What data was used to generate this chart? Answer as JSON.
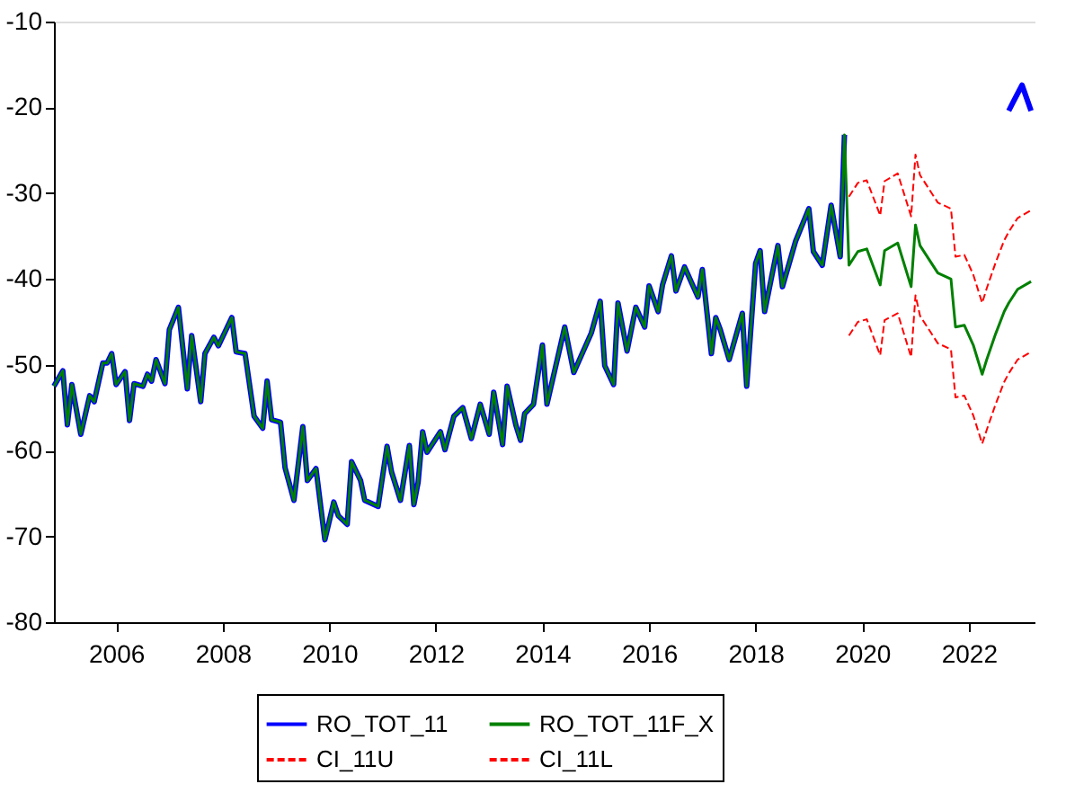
{
  "chart_data": {
    "type": "line",
    "xlim": [
      "2005-05",
      "2023-10"
    ],
    "ylim": [
      -80,
      -10
    ],
    "yticks": [
      -80,
      -70,
      -60,
      -50,
      -40,
      -30,
      -20,
      -10
    ],
    "xticks": [
      {
        "value": "2006-07",
        "label": "2006"
      },
      {
        "value": "2008-07",
        "label": "2008"
      },
      {
        "value": "2010-07",
        "label": "2010"
      },
      {
        "value": "2012-07",
        "label": "2012"
      },
      {
        "value": "2014-07",
        "label": "2014"
      },
      {
        "value": "2016-07",
        "label": "2016"
      },
      {
        "value": "2018-07",
        "label": "2018"
      },
      {
        "value": "2020-07",
        "label": "2020"
      },
      {
        "value": "2022-07",
        "label": "2022"
      }
    ],
    "grid": false,
    "legend": "bottom",
    "series": [
      {
        "name": "RO_TOT_11",
        "color": "#0000ff",
        "line_style": "solid",
        "x": [
          "2005-05",
          "2005-07",
          "2005-08",
          "2005-09",
          "2005-11",
          "2006-01",
          "2006-02",
          "2006-04",
          "2006-05",
          "2006-06",
          "2006-07",
          "2006-09",
          "2006-10",
          "2006-11",
          "2007-01",
          "2007-02",
          "2007-03",
          "2007-04",
          "2007-06",
          "2007-07",
          "2007-09",
          "2007-11",
          "2007-12",
          "2008-02",
          "2008-03",
          "2008-05",
          "2008-06",
          "2008-09",
          "2008-10",
          "2008-12",
          "2009-02",
          "2009-04",
          "2009-05",
          "2009-06",
          "2009-08",
          "2009-09",
          "2009-11",
          "2010-01",
          "2010-02",
          "2010-04",
          "2010-06",
          "2010-08",
          "2010-09",
          "2010-11",
          "2010-12",
          "2011-02",
          "2011-03",
          "2011-06",
          "2011-08",
          "2011-09",
          "2011-11",
          "2012-01",
          "2012-02",
          "2012-03",
          "2012-04",
          "2012-05",
          "2012-08",
          "2012-09",
          "2012-11",
          "2013-01",
          "2013-03",
          "2013-05",
          "2013-07",
          "2013-08",
          "2013-10",
          "2013-11",
          "2014-01",
          "2014-02",
          "2014-03",
          "2014-05",
          "2014-07",
          "2014-08",
          "2014-12",
          "2015-02",
          "2015-06",
          "2015-08",
          "2015-09",
          "2015-11",
          "2015-12",
          "2016-02",
          "2016-04",
          "2016-06",
          "2016-07",
          "2016-09",
          "2016-10",
          "2016-12",
          "2017-01",
          "2017-03",
          "2017-06",
          "2017-07",
          "2017-09",
          "2017-10",
          "2017-11",
          "2018-01",
          "2018-04",
          "2018-05",
          "2018-07",
          "2018-08",
          "2018-09",
          "2018-12",
          "2019-01",
          "2019-04",
          "2019-07",
          "2019-08",
          "2019-10",
          "2019-12",
          "2020-02",
          "2020-03",
          "2021-09",
          "2023-04",
          "2023-05",
          "2023-07",
          "2023-09"
        ],
        "values": [
          -52.5,
          -50.7,
          -57.0,
          -52.3,
          -58.1,
          -53.6,
          -54.3,
          -49.8,
          -49.8,
          -48.7,
          -52.3,
          -50.8,
          -56.5,
          -52.2,
          -52.5,
          -51.1,
          -51.9,
          -49.4,
          -52.2,
          -45.9,
          -43.3,
          -52.8,
          -46.6,
          -54.3,
          -48.7,
          -46.8,
          -47.8,
          -44.5,
          -48.5,
          -48.7,
          -56.0,
          -57.4,
          -51.9,
          -56.4,
          -56.7,
          -62.0,
          -65.8,
          -57.2,
          -63.5,
          -62.1,
          -70.4,
          -66.0,
          -67.6,
          -68.6,
          -61.3,
          -63.5,
          -65.8,
          -66.5,
          -59.5,
          -62.5,
          -65.8,
          -59.4,
          -66.3,
          -63.7,
          -57.8,
          -60.2,
          -57.8,
          -59.9,
          -56.0,
          -55.0,
          -58.6,
          -54.6,
          -58.1,
          -53.2,
          -59.3,
          -52.5,
          -57.1,
          -58.8,
          -55.7,
          -54.6,
          -47.7,
          -54.6,
          -45.6,
          -50.9,
          -46.3,
          -42.6,
          -50.1,
          -52.3,
          -42.8,
          -48.4,
          -43.3,
          -45.6,
          -40.8,
          -43.8,
          -40.7,
          -37.3,
          -41.4,
          -38.6,
          -42.1,
          -38.9,
          -48.7,
          -44.5,
          -45.9,
          -49.4,
          -44.0,
          -52.5,
          -38.2,
          -36.7,
          -43.8,
          -36.1,
          -40.9,
          -35.6,
          -31.8,
          -36.8,
          -38.4,
          -31.4,
          -37.4,
          -23.2,
          null,
          -20.4,
          -19.4,
          -17.4,
          -20.4
        ]
      },
      {
        "name": "RO_TOT_11F_X",
        "color": "#008000",
        "line_style": "solid",
        "x": [
          "2005-05",
          "2005-07",
          "2005-08",
          "2005-09",
          "2005-11",
          "2006-01",
          "2006-02",
          "2006-04",
          "2006-05",
          "2006-06",
          "2006-07",
          "2006-09",
          "2006-10",
          "2006-11",
          "2007-01",
          "2007-02",
          "2007-03",
          "2007-04",
          "2007-06",
          "2007-07",
          "2007-09",
          "2007-11",
          "2007-12",
          "2008-02",
          "2008-03",
          "2008-05",
          "2008-06",
          "2008-09",
          "2008-10",
          "2008-12",
          "2009-02",
          "2009-04",
          "2009-05",
          "2009-06",
          "2009-08",
          "2009-09",
          "2009-11",
          "2010-01",
          "2010-02",
          "2010-04",
          "2010-06",
          "2010-08",
          "2010-09",
          "2010-11",
          "2010-12",
          "2011-02",
          "2011-03",
          "2011-06",
          "2011-08",
          "2011-09",
          "2011-11",
          "2012-01",
          "2012-02",
          "2012-03",
          "2012-04",
          "2012-05",
          "2012-08",
          "2012-09",
          "2012-11",
          "2013-01",
          "2013-03",
          "2013-05",
          "2013-07",
          "2013-08",
          "2013-10",
          "2013-11",
          "2014-01",
          "2014-02",
          "2014-03",
          "2014-05",
          "2014-07",
          "2014-08",
          "2014-12",
          "2015-02",
          "2015-06",
          "2015-08",
          "2015-09",
          "2015-11",
          "2015-12",
          "2016-02",
          "2016-04",
          "2016-06",
          "2016-07",
          "2016-09",
          "2016-10",
          "2016-12",
          "2017-01",
          "2017-03",
          "2017-06",
          "2017-07",
          "2017-09",
          "2017-10",
          "2017-11",
          "2018-01",
          "2018-04",
          "2018-05",
          "2018-07",
          "2018-08",
          "2018-09",
          "2018-12",
          "2019-01",
          "2019-04",
          "2019-07",
          "2019-08",
          "2019-10",
          "2019-12",
          "2020-02",
          "2020-03",
          "2020-04",
          "2020-06",
          "2020-08",
          "2020-11",
          "2020-12",
          "2021-03",
          "2021-06",
          "2021-07",
          "2021-08",
          "2021-12",
          "2022-03",
          "2022-04",
          "2022-06",
          "2022-08",
          "2022-10",
          "2022-11",
          "2023-01",
          "2023-03",
          "2023-04",
          "2023-06",
          "2023-09"
        ],
        "values": [
          -52.5,
          -50.7,
          -57.0,
          -52.3,
          -58.1,
          -53.6,
          -54.3,
          -49.8,
          -49.8,
          -48.7,
          -52.3,
          -50.8,
          -56.5,
          -52.2,
          -52.5,
          -51.1,
          -51.9,
          -49.4,
          -52.2,
          -45.9,
          -43.3,
          -52.8,
          -46.6,
          -54.3,
          -48.7,
          -46.8,
          -47.8,
          -44.5,
          -48.5,
          -48.7,
          -56.0,
          -57.4,
          -51.9,
          -56.4,
          -56.7,
          -62.0,
          -65.8,
          -57.2,
          -63.5,
          -62.1,
          -70.4,
          -66.0,
          -67.6,
          -68.6,
          -61.3,
          -63.5,
          -65.8,
          -66.5,
          -59.5,
          -62.5,
          -65.8,
          -59.4,
          -66.3,
          -63.7,
          -57.8,
          -60.2,
          -57.8,
          -59.9,
          -56.0,
          -55.0,
          -58.6,
          -54.6,
          -58.1,
          -53.2,
          -59.3,
          -52.5,
          -57.1,
          -58.8,
          -55.7,
          -54.6,
          -47.7,
          -54.6,
          -45.6,
          -50.9,
          -46.3,
          -42.6,
          -50.1,
          -52.3,
          -42.8,
          -48.4,
          -43.3,
          -45.6,
          -40.8,
          -43.8,
          -40.7,
          -37.3,
          -41.4,
          -38.6,
          -42.1,
          -38.9,
          -48.7,
          -44.5,
          -45.9,
          -49.4,
          -44.0,
          -52.5,
          -38.2,
          -36.7,
          -43.8,
          -36.1,
          -40.9,
          -35.6,
          -31.8,
          -36.8,
          -38.4,
          -31.4,
          -37.4,
          -23.2,
          -38.4,
          -36.8,
          -36.5,
          -40.7,
          -36.7,
          -35.8,
          -40.9,
          -33.7,
          -36.1,
          -39.3,
          -40.0,
          -45.6,
          -45.4,
          -47.7,
          -51.1,
          -49.4,
          -46.4,
          -43.8,
          -42.8,
          -41.2,
          -40.3
        ]
      },
      {
        "name": "CI_11U",
        "color": "#ff0000",
        "line_style": "dashed",
        "x": [
          "2020-04",
          "2020-06",
          "2020-08",
          "2020-11",
          "2020-12",
          "2021-03",
          "2021-06",
          "2021-07",
          "2021-08",
          "2021-12",
          "2022-03",
          "2022-04",
          "2022-06",
          "2022-08",
          "2022-10",
          "2022-11",
          "2023-01",
          "2023-03",
          "2023-04",
          "2023-06",
          "2023-09"
        ],
        "values": [
          -30.4,
          -28.8,
          -28.5,
          -32.6,
          -28.6,
          -27.7,
          -32.7,
          -25.5,
          -27.9,
          -31.1,
          -31.8,
          -37.4,
          -37.2,
          -39.5,
          -42.8,
          -41.1,
          -38.1,
          -35.5,
          -34.5,
          -32.9,
          -32.0
        ]
      },
      {
        "name": "CI_11L",
        "color": "#ff0000",
        "line_style": "dashed",
        "x": [
          "2020-04",
          "2020-06",
          "2020-08",
          "2020-11",
          "2020-12",
          "2021-03",
          "2021-06",
          "2021-07",
          "2021-08",
          "2021-12",
          "2022-03",
          "2022-04",
          "2022-06",
          "2022-08",
          "2022-10",
          "2022-11",
          "2023-01",
          "2023-03",
          "2023-04",
          "2023-06",
          "2023-09"
        ],
        "values": [
          -46.6,
          -45.0,
          -44.7,
          -48.9,
          -44.8,
          -44.0,
          -49.1,
          -41.9,
          -44.3,
          -47.5,
          -48.2,
          -53.8,
          -53.6,
          -55.9,
          -59.2,
          -57.6,
          -54.6,
          -52.0,
          -51.0,
          -49.4,
          -48.5
        ]
      }
    ]
  }
}
